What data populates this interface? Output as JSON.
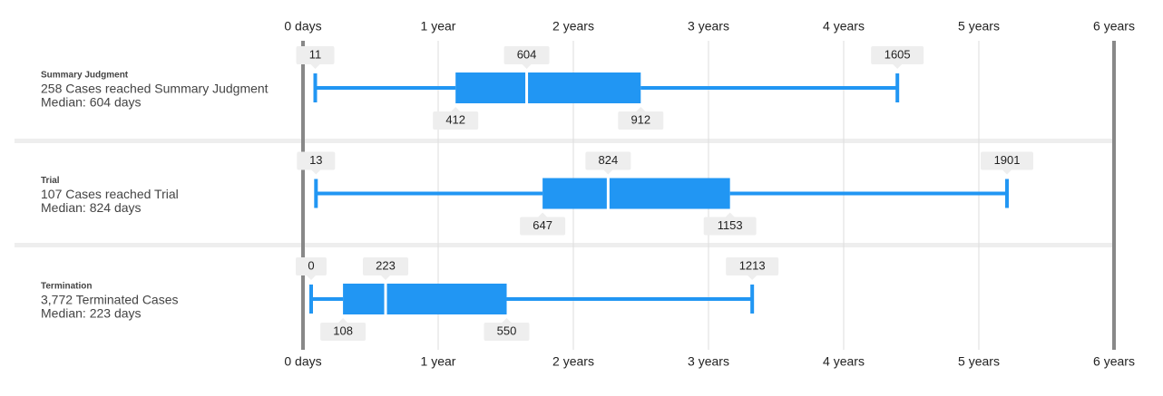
{
  "chart_data": {
    "type": "boxplot",
    "color": "#2196f3",
    "xlim": [
      0,
      2190
    ],
    "xticks": [
      {
        "value": 0,
        "label": "0 days"
      },
      {
        "value": 365,
        "label": "1 year"
      },
      {
        "value": 730,
        "label": "2 years"
      },
      {
        "value": 1095,
        "label": "3 years"
      },
      {
        "value": 1460,
        "label": "4 years"
      },
      {
        "value": 1825,
        "label": "5 years"
      },
      {
        "value": 2190,
        "label": "6 years"
      }
    ],
    "grid": true,
    "categories": [
      "Summary Judgment",
      "Trial",
      "Termination"
    ],
    "descriptions": [
      "258 Cases reached Summary Judgment",
      "107 Cases reached Trial",
      "3,772 Terminated Cases"
    ],
    "median_labels": [
      "Median: 604 days",
      "Median: 824 days",
      "Median: 223 days"
    ],
    "boxes": [
      {
        "min": 11,
        "q1": 412,
        "median": 604,
        "q3": 912,
        "max": 1605
      },
      {
        "min": 13,
        "q1": 647,
        "median": 824,
        "q3": 1153,
        "max": 1901
      },
      {
        "min": 0,
        "q1": 108,
        "median": 223,
        "q3": 550,
        "max": 1213
      }
    ]
  }
}
